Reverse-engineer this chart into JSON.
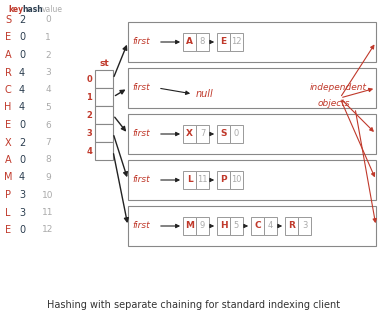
{
  "bg_color": "#ffffff",
  "title": "Hashing with separate chaining for standard indexing client",
  "title_fontsize": 7.0,
  "title_color": "#333333",
  "left_keys": [
    "S",
    "E",
    "A",
    "R",
    "C",
    "H",
    "E",
    "X",
    "A",
    "M",
    "P",
    "L",
    "E"
  ],
  "left_hash": [
    "2",
    "0",
    "0",
    "4",
    "4",
    "4",
    "0",
    "2",
    "0",
    "4",
    "3",
    "3",
    "0"
  ],
  "left_values": [
    "0",
    "1",
    "2",
    "3",
    "4",
    "5",
    "6",
    "7",
    "8",
    "9",
    "10",
    "11",
    "12"
  ],
  "key_color": "#c0392b",
  "hash_color": "#2c3e50",
  "value_color": "#aaaaaa",
  "st_label": "st",
  "st_color": "#c0392b",
  "st_index_color": "#c0392b",
  "chain_boxes": [
    {
      "label": "first",
      "null": false,
      "nodes": [
        [
          "A",
          "8"
        ],
        [
          "E",
          "12"
        ]
      ]
    },
    {
      "label": "first",
      "null": true,
      "nodes": []
    },
    {
      "label": "first",
      "null": false,
      "nodes": [
        [
          "X",
          "7"
        ],
        [
          "S",
          "0"
        ]
      ]
    },
    {
      "label": "first",
      "null": false,
      "nodes": [
        [
          "L",
          "11"
        ],
        [
          "P",
          "10"
        ]
      ]
    },
    {
      "label": "first",
      "null": false,
      "nodes": [
        [
          "M",
          "9"
        ],
        [
          "H",
          "5"
        ],
        [
          "C",
          "4"
        ],
        [
          "R",
          "3"
        ]
      ]
    }
  ],
  "node_key_color": "#c0392b",
  "node_val_color": "#aaaaaa",
  "node_border_color": "#999999",
  "arrow_color": "#222222",
  "red_arrow_color": "#c0392b",
  "independent_label": "independent",
  "objects_label": "objects",
  "annotation_color": "#c0392b",
  "null_color": "#c0392b",
  "first_color": "#c0392b"
}
